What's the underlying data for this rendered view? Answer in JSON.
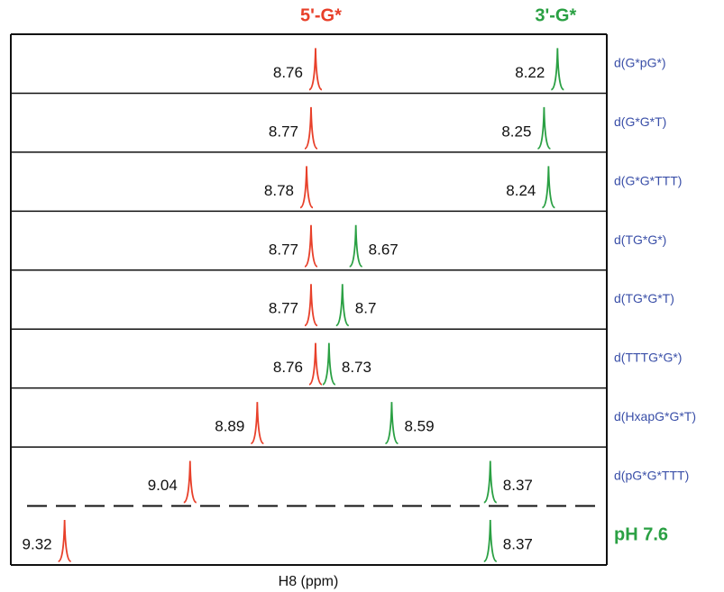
{
  "chart_data": {
    "type": "nmr-stack",
    "x_label": "H8 (ppm)",
    "categories": [
      "d(G*pG*)",
      "d(G*G*T)",
      "d(G*G*TTT)",
      "d(TG*G*)",
      "d(TG*G*T)",
      "d(TTTG*G*)",
      "d(HxapG*G*T)",
      "d(pG*G*TTT)",
      "pH 7.6"
    ],
    "series": [
      {
        "name": "5'-G*",
        "color": "#e8402a",
        "values": [
          8.76,
          8.77,
          8.78,
          8.77,
          8.77,
          8.76,
          8.89,
          9.04,
          9.32
        ]
      },
      {
        "name": "3'-G*",
        "color": "#2aa043",
        "values": [
          8.22,
          8.25,
          8.24,
          8.67,
          8.7,
          8.73,
          8.59,
          8.37,
          8.37
        ]
      }
    ],
    "xlim": [
      9.44,
      8.11
    ]
  }
}
